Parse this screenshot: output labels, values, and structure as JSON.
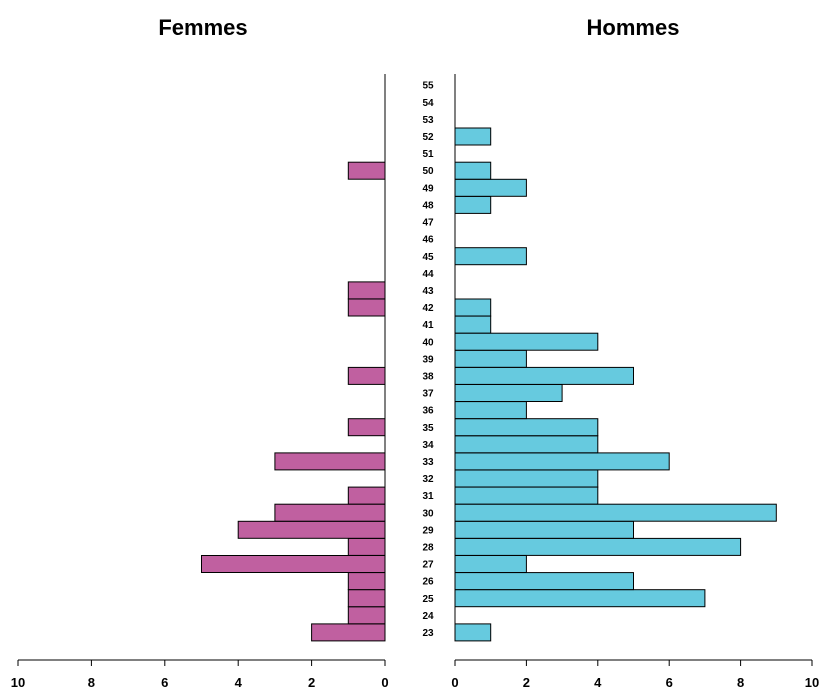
{
  "chart_data": {
    "type": "bar",
    "orientation": "horizontal",
    "layout": "population-pyramid",
    "categories": [
      "23",
      "24",
      "25",
      "26",
      "27",
      "28",
      "29",
      "30",
      "31",
      "32",
      "33",
      "34",
      "35",
      "36",
      "37",
      "38",
      "39",
      "40",
      "41",
      "42",
      "43",
      "44",
      "45",
      "46",
      "47",
      "48",
      "49",
      "50",
      "51",
      "52",
      "53",
      "54",
      "55"
    ],
    "series": [
      {
        "name": "Femmes",
        "color": "#c060a0",
        "values": [
          2,
          1,
          1,
          1,
          5,
          1,
          4,
          3,
          1,
          0,
          3,
          0,
          1,
          0,
          0,
          1,
          0,
          0,
          0,
          1,
          1,
          0,
          0,
          0,
          0,
          0,
          0,
          1,
          0,
          0,
          0,
          0,
          0
        ]
      },
      {
        "name": "Hommes",
        "color": "#66cadf",
        "values": [
          1,
          0,
          7,
          5,
          2,
          8,
          5,
          9,
          4,
          4,
          6,
          4,
          4,
          2,
          3,
          5,
          2,
          4,
          1,
          1,
          0,
          0,
          2,
          0,
          0,
          1,
          2,
          1,
          0,
          1,
          0,
          0,
          0
        ]
      }
    ],
    "xlim": [
      0,
      10
    ],
    "x_ticks": [
      "0",
      "2",
      "4",
      "6",
      "8",
      "10"
    ],
    "left_x_ticks": [
      "10",
      "8",
      "6",
      "4",
      "2",
      "0"
    ],
    "grid": false,
    "legend": "none"
  }
}
